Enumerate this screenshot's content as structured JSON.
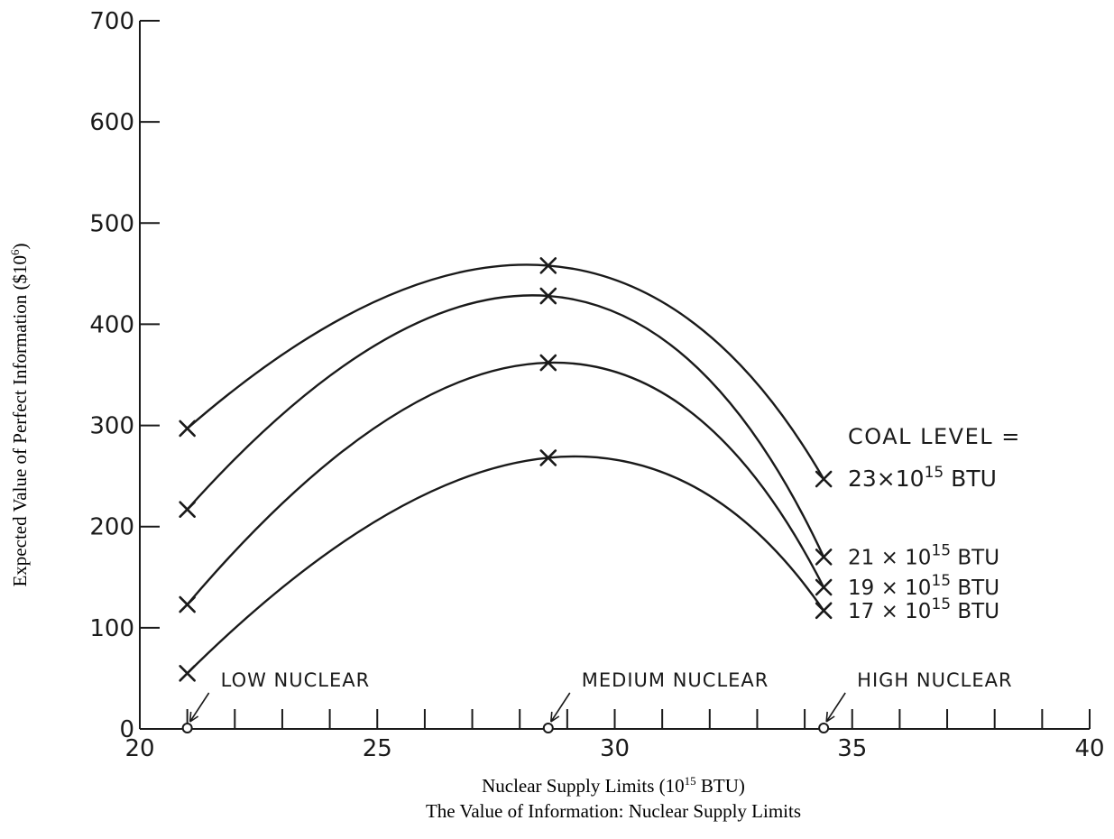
{
  "chart_data": {
    "type": "line",
    "title": "The Value of Information: Nuclear Supply Limits",
    "xlabel_main": "Nuclear Supply Limits (10",
    "xlabel_sup": "15",
    "xlabel_tail": " BTU)",
    "ylabel_main": "Expected Value of Perfect Information ($10",
    "ylabel_sup": "6",
    "ylabel_tail": ")",
    "xlim": [
      20,
      40
    ],
    "ylim": [
      0,
      700
    ],
    "x_major_ticks": [
      20,
      25,
      30,
      35,
      40
    ],
    "x_minor_step": 1,
    "y_ticks": [
      0,
      100,
      200,
      300,
      400,
      500,
      600,
      700
    ],
    "grid": false,
    "legend_heading": "COAL LEVEL =",
    "series": [
      {
        "name_main": "23×10",
        "name_sup": "15",
        "name_tail": " BTU",
        "x": [
          21,
          28.6,
          34.4
        ],
        "y": [
          297,
          458,
          247
        ]
      },
      {
        "name_main": "21 × 10",
        "name_sup": "15",
        "name_tail": " BTU",
        "x": [
          21,
          28.6,
          34.4
        ],
        "y": [
          217,
          428,
          170
        ]
      },
      {
        "name_main": "19 × 10",
        "name_sup": "15",
        "name_tail": " BTU",
        "x": [
          21,
          28.6,
          34.4
        ],
        "y": [
          123,
          362,
          140
        ]
      },
      {
        "name_main": "17 × 10",
        "name_sup": "15",
        "name_tail": " BTU",
        "x": [
          21,
          28.6,
          34.4
        ],
        "y": [
          55,
          268,
          117
        ]
      }
    ],
    "nuclear_levels": [
      {
        "label": "LOW NUCLEAR",
        "x": 21
      },
      {
        "label": "MEDIUM NUCLEAR",
        "x": 28.6
      },
      {
        "label": "HIGH NUCLEAR",
        "x": 34.4
      }
    ]
  }
}
